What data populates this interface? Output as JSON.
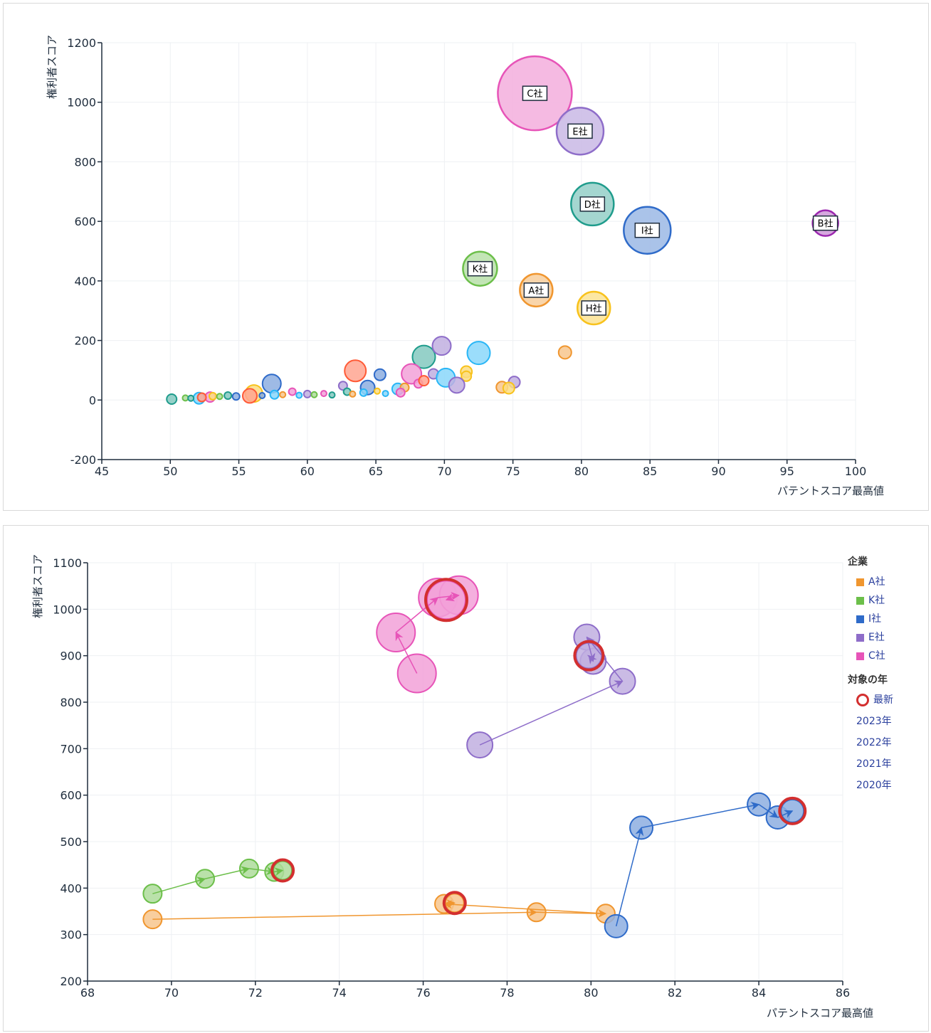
{
  "chart_data": [
    {
      "type": "scatter",
      "subtype": "bubble",
      "xlabel": "パテントスコア最高値",
      "ylabel": "権利者スコア",
      "xlim": [
        45,
        100
      ],
      "ylim": [
        -200,
        1200
      ],
      "xticks": [
        "45",
        "50",
        "55",
        "60",
        "65",
        "70",
        "75",
        "80",
        "85",
        "90",
        "95",
        "100"
      ],
      "yticks": [
        "-200",
        "0",
        "200",
        "400",
        "600",
        "800",
        "1000",
        "1200"
      ],
      "grid": true,
      "labeled": [
        {
          "label": "C社",
          "x": 76.6,
          "y": 1030,
          "size": 52,
          "color": "#e754b8"
        },
        {
          "label": "E社",
          "x": 79.9,
          "y": 903,
          "size": 33,
          "color": "#8e6dc9"
        },
        {
          "label": "D社",
          "x": 80.8,
          "y": 658,
          "size": 30,
          "color": "#1f9c8c"
        },
        {
          "label": "I社",
          "x": 84.8,
          "y": 570,
          "size": 33,
          "color": "#2f6bc9"
        },
        {
          "label": "B社",
          "x": 97.8,
          "y": 594,
          "size": 18,
          "color": "#9c27b0"
        },
        {
          "label": "K社",
          "x": 72.6,
          "y": 441,
          "size": 24,
          "color": "#6cbf4a"
        },
        {
          "label": "A社",
          "x": 76.7,
          "y": 369,
          "size": 23,
          "color": "#f0962f"
        },
        {
          "label": "H社",
          "x": 80.9,
          "y": 309,
          "size": 23,
          "color": "#f8c21c"
        }
      ],
      "points": [
        {
          "x": 78.8,
          "y": 160,
          "size": 9,
          "color": "#f0962f"
        },
        {
          "x": 72.5,
          "y": 158,
          "size": 16,
          "color": "#29b6f6"
        },
        {
          "x": 68.5,
          "y": 145,
          "size": 16,
          "color": "#1f9c8c"
        },
        {
          "x": 69.8,
          "y": 182,
          "size": 13,
          "color": "#8e6dc9"
        },
        {
          "x": 63.5,
          "y": 98,
          "size": 15,
          "color": "#ff5a36"
        },
        {
          "x": 65.3,
          "y": 85,
          "size": 8,
          "color": "#2f6bc9"
        },
        {
          "x": 67.6,
          "y": 88,
          "size": 14,
          "color": "#e754b8"
        },
        {
          "x": 69.2,
          "y": 88,
          "size": 7,
          "color": "#8e6dc9"
        },
        {
          "x": 70.1,
          "y": 75,
          "size": 13,
          "color": "#29b6f6"
        },
        {
          "x": 71.6,
          "y": 95,
          "size": 8,
          "color": "#f8c21c"
        },
        {
          "x": 71.6,
          "y": 80,
          "size": 7,
          "color": "#f8c21c"
        },
        {
          "x": 70.9,
          "y": 50,
          "size": 11,
          "color": "#8e6dc9"
        },
        {
          "x": 75.1,
          "y": 60,
          "size": 8,
          "color": "#8e6dc9"
        },
        {
          "x": 74.2,
          "y": 43,
          "size": 8,
          "color": "#f0962f"
        },
        {
          "x": 74.7,
          "y": 40,
          "size": 8,
          "color": "#f8c21c"
        },
        {
          "x": 57.4,
          "y": 55,
          "size": 13,
          "color": "#2f6bc9"
        },
        {
          "x": 64.4,
          "y": 42,
          "size": 10,
          "color": "#2f6bc9"
        },
        {
          "x": 66.6,
          "y": 37,
          "size": 8,
          "color": "#29b6f6"
        },
        {
          "x": 68.1,
          "y": 55,
          "size": 6,
          "color": "#e754b8"
        },
        {
          "x": 68.5,
          "y": 65,
          "size": 7,
          "color": "#ff5a36"
        },
        {
          "x": 67.1,
          "y": 42,
          "size": 6,
          "color": "#f0962f"
        },
        {
          "x": 62.6,
          "y": 48,
          "size": 6,
          "color": "#8e6dc9"
        },
        {
          "x": 56.1,
          "y": 22,
          "size": 12,
          "color": "#f8c21c"
        },
        {
          "x": 55.8,
          "y": 14,
          "size": 10,
          "color": "#ff5a36"
        },
        {
          "x": 52.1,
          "y": 6,
          "size": 8,
          "color": "#29b6f6"
        },
        {
          "x": 50.1,
          "y": 3,
          "size": 7,
          "color": "#1f9c8c"
        },
        {
          "x": 52.9,
          "y": 10,
          "size": 7,
          "color": "#e754b8"
        },
        {
          "x": 52.3,
          "y": 9,
          "size": 6,
          "color": "#ff5a36"
        },
        {
          "x": 53.1,
          "y": 13,
          "size": 5,
          "color": "#f8c21c"
        },
        {
          "x": 54.2,
          "y": 15,
          "size": 5,
          "color": "#1f9c8c"
        },
        {
          "x": 54.8,
          "y": 12,
          "size": 5,
          "color": "#2f6bc9"
        },
        {
          "x": 57.6,
          "y": 18,
          "size": 6,
          "color": "#29b6f6"
        },
        {
          "x": 58.9,
          "y": 28,
          "size": 5,
          "color": "#e754b8"
        },
        {
          "x": 60.0,
          "y": 20,
          "size": 5,
          "color": "#8e6dc9"
        },
        {
          "x": 61.2,
          "y": 22,
          "size": 4,
          "color": "#e754b8"
        },
        {
          "x": 62.9,
          "y": 28,
          "size": 5,
          "color": "#1f9c8c"
        },
        {
          "x": 64.1,
          "y": 25,
          "size": 5,
          "color": "#29b6f6"
        },
        {
          "x": 65.1,
          "y": 30,
          "size": 4,
          "color": "#f8c21c"
        },
        {
          "x": 66.8,
          "y": 25,
          "size": 6,
          "color": "#e754b8"
        },
        {
          "x": 51.1,
          "y": 7,
          "size": 4,
          "color": "#6cbf4a"
        },
        {
          "x": 51.5,
          "y": 6,
          "size": 4,
          "color": "#1f9c8c"
        },
        {
          "x": 53.6,
          "y": 12,
          "size": 4,
          "color": "#6cbf4a"
        },
        {
          "x": 56.7,
          "y": 15,
          "size": 4,
          "color": "#2f6bc9"
        },
        {
          "x": 58.2,
          "y": 18,
          "size": 4,
          "color": "#f0962f"
        },
        {
          "x": 59.4,
          "y": 16,
          "size": 4,
          "color": "#29b6f6"
        },
        {
          "x": 60.5,
          "y": 18,
          "size": 4,
          "color": "#6cbf4a"
        },
        {
          "x": 61.8,
          "y": 17,
          "size": 4,
          "color": "#1f9c8c"
        },
        {
          "x": 63.3,
          "y": 20,
          "size": 4,
          "color": "#f0962f"
        },
        {
          "x": 65.7,
          "y": 22,
          "size": 4,
          "color": "#29b6f6"
        }
      ]
    },
    {
      "type": "scatter",
      "subtype": "bubble-trajectory",
      "xlabel": "パテントスコア最高値",
      "ylabel": "権利者スコア",
      "xlim": [
        68,
        86
      ],
      "ylim": [
        200,
        1100
      ],
      "xticks": [
        "68",
        "70",
        "72",
        "74",
        "76",
        "78",
        "80",
        "82",
        "84",
        "86"
      ],
      "yticks": [
        "200",
        "300",
        "400",
        "500",
        "600",
        "700",
        "800",
        "900",
        "1000",
        "1100"
      ],
      "grid": true,
      "legend": {
        "company_title": "企業",
        "companies": [
          {
            "name": "A社",
            "color": "#f0962f"
          },
          {
            "name": "K社",
            "color": "#6cbf4a"
          },
          {
            "name": "I社",
            "color": "#2f6bc9"
          },
          {
            "name": "E社",
            "color": "#8e6dc9"
          },
          {
            "name": "C社",
            "color": "#e754b8"
          }
        ],
        "year_title": "対象の年",
        "latest_label": "最新",
        "latest_color": "#d32f2f",
        "years": [
          "2023年",
          "2022年",
          "2021年",
          "2020年"
        ]
      },
      "series": [
        {
          "name": "A社",
          "color": "#f0962f",
          "size": 13,
          "points": [
            {
              "x": 69.55,
              "y": 333
            },
            {
              "x": 78.7,
              "y": 348
            },
            {
              "x": 80.35,
              "y": 345
            },
            {
              "x": 76.5,
              "y": 366
            },
            {
              "x": 76.75,
              "y": 368
            }
          ]
        },
        {
          "name": "K社",
          "color": "#6cbf4a",
          "size": 13,
          "points": [
            {
              "x": 69.55,
              "y": 388
            },
            {
              "x": 70.8,
              "y": 420
            },
            {
              "x": 71.85,
              "y": 442
            },
            {
              "x": 72.45,
              "y": 435
            },
            {
              "x": 72.65,
              "y": 438
            }
          ]
        },
        {
          "name": "I社",
          "color": "#2f6bc9",
          "size": 16,
          "points": [
            {
              "x": 80.6,
              "y": 318
            },
            {
              "x": 81.2,
              "y": 530
            },
            {
              "x": 84.0,
              "y": 580
            },
            {
              "x": 84.45,
              "y": 552
            },
            {
              "x": 84.8,
              "y": 566
            }
          ]
        },
        {
          "name": "E社",
          "color": "#8e6dc9",
          "size": 18,
          "points": [
            {
              "x": 77.35,
              "y": 708
            },
            {
              "x": 80.75,
              "y": 845
            },
            {
              "x": 79.9,
              "y": 940
            },
            {
              "x": 80.05,
              "y": 888
            },
            {
              "x": 79.95,
              "y": 900
            }
          ]
        },
        {
          "name": "C社",
          "color": "#e754b8",
          "size": 27,
          "points": [
            {
              "x": 75.85,
              "y": 862
            },
            {
              "x": 75.35,
              "y": 950
            },
            {
              "x": 76.35,
              "y": 1025
            },
            {
              "x": 76.85,
              "y": 1030
            },
            {
              "x": 76.55,
              "y": 1020
            }
          ]
        }
      ]
    }
  ]
}
